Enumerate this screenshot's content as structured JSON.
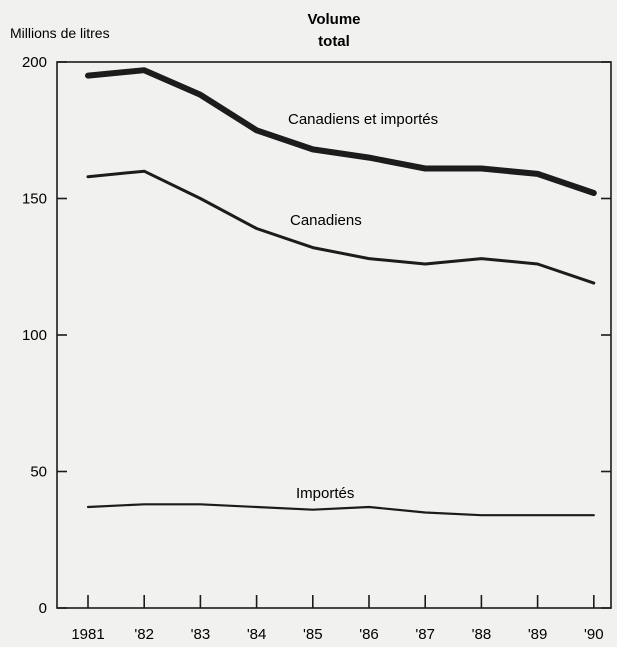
{
  "chart_data": {
    "type": "line",
    "title": "Volume total",
    "title_lines": [
      "Volume",
      "total"
    ],
    "ylabel": "Millions de litres",
    "xlabel": "",
    "ylim": [
      0,
      200
    ],
    "yticks": [
      0,
      50,
      100,
      150,
      200
    ],
    "categories": [
      "1981",
      "'82",
      "'83",
      "'84",
      "'85",
      "'86",
      "'87",
      "'88",
      "'89",
      "'90"
    ],
    "grid": false,
    "series": [
      {
        "name": "Canadiens et importés",
        "color": "#1c1c1c",
        "values": [
          195,
          197,
          188,
          175,
          168,
          165,
          161,
          161,
          159,
          152
        ]
      },
      {
        "name": "Canadiens",
        "color": "#1c1c1c",
        "values": [
          158,
          160,
          150,
          139,
          132,
          128,
          126,
          128,
          126,
          119
        ]
      },
      {
        "name": "Importés",
        "color": "#1c1c1c",
        "values": [
          37,
          38,
          38,
          37,
          36,
          37,
          35,
          34,
          34,
          34
        ]
      }
    ]
  }
}
